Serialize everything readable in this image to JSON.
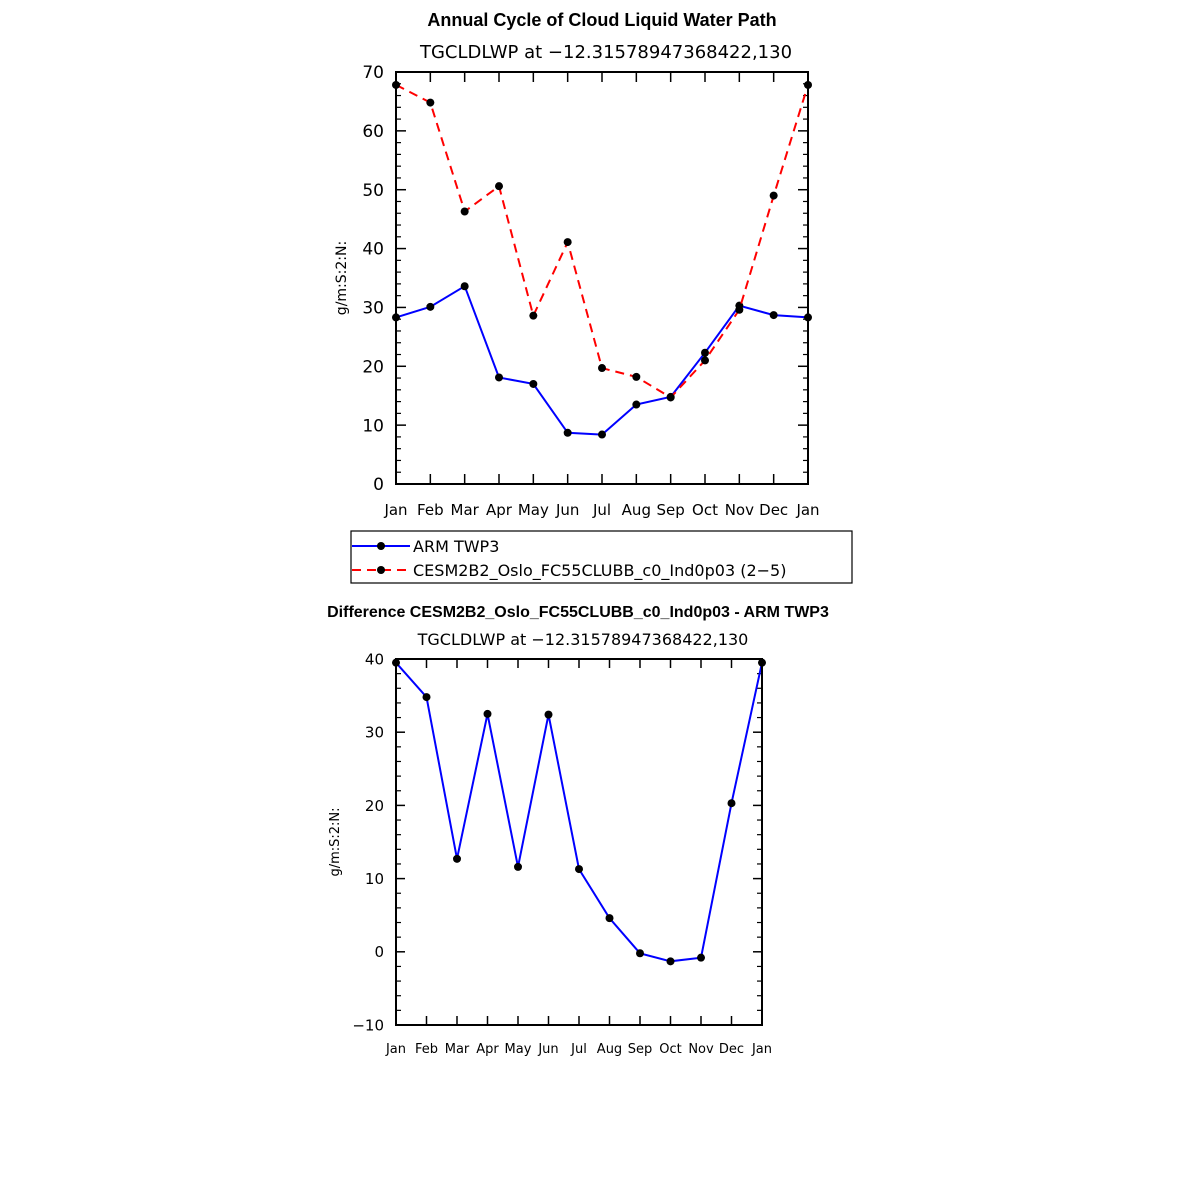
{
  "chart_data": [
    {
      "type": "line",
      "title": "Annual Cycle of Cloud Liquid Water Path",
      "subtitle": "TGCLDLWP at −12.31578947368422,130",
      "ylabel": "g/m:S:2:N:",
      "xlabel": "",
      "categories": [
        "Jan",
        "Feb",
        "Mar",
        "Apr",
        "May",
        "Jun",
        "Jul",
        "Aug",
        "Sep",
        "Oct",
        "Nov",
        "Dec",
        "Jan"
      ],
      "ylim": [
        0,
        70
      ],
      "yticks": [
        "0",
        "10",
        "20",
        "30",
        "40",
        "50",
        "60",
        "70"
      ],
      "series": [
        {
          "name": "ARM TWP3",
          "color": "#0000ff",
          "dash": "solid",
          "values": [
            28.3,
            30.1,
            33.6,
            18.1,
            17.0,
            8.7,
            8.4,
            13.5,
            14.8,
            22.3,
            30.3,
            28.7,
            28.3
          ]
        },
        {
          "name": "CESM2B2_Oslo_FC55CLUBB_c0_Ind0p03 (2−5)",
          "color": "#ff0000",
          "dash": "dashed",
          "values": [
            67.8,
            64.8,
            46.3,
            50.6,
            28.6,
            41.1,
            19.7,
            18.2,
            14.7,
            21.0,
            29.6,
            49.0,
            67.8
          ]
        }
      ],
      "legend": {
        "position": "below-plot",
        "entries": [
          "ARM TWP3",
          "CESM2B2_Oslo_FC55CLUBB_c0_Ind0p03 (2−5)"
        ]
      }
    },
    {
      "type": "line",
      "title": "Difference CESM2B2_Oslo_FC55CLUBB_c0_Ind0p03 - ARM TWP3",
      "subtitle": "TGCLDLWP at −12.31578947368422,130",
      "ylabel": "g/m:S:2:N:",
      "xlabel": "",
      "categories": [
        "Jan",
        "Feb",
        "Mar",
        "Apr",
        "May",
        "Jun",
        "Jul",
        "Aug",
        "Sep",
        "Oct",
        "Nov",
        "Dec",
        "Jan"
      ],
      "ylim": [
        -10,
        40
      ],
      "yticks": [
        "−10",
        "0",
        "10",
        "20",
        "30",
        "40"
      ],
      "series": [
        {
          "name": "Difference",
          "color": "#0000ff",
          "dash": "solid",
          "values": [
            39.5,
            34.8,
            12.7,
            32.5,
            11.6,
            32.4,
            11.3,
            4.6,
            -0.2,
            -1.3,
            -0.8,
            20.3,
            39.5
          ]
        }
      ]
    }
  ]
}
